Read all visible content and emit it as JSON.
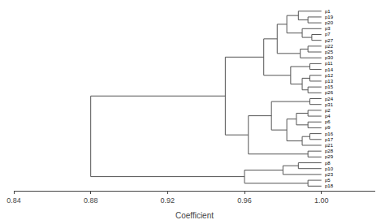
{
  "chart_data": {
    "type": "dendrogram",
    "xlabel": "Coefficient",
    "labels": [
      "p1",
      "p19",
      "p20",
      "p3",
      "p7",
      "p27",
      "p22",
      "p25",
      "p30",
      "p11",
      "p14",
      "p12",
      "p13",
      "p15",
      "p26",
      "p24",
      "p31",
      "p2",
      "p4",
      "p6",
      "p9",
      "p16",
      "p17",
      "p21",
      "p28",
      "p29",
      "p8",
      "p10",
      "p23",
      "p5",
      "p18"
    ],
    "leaf_height": 1.0,
    "merges": [
      {
        "left": 1,
        "right": 2,
        "height": 0.993,
        "id": 31
      },
      {
        "left": 0,
        "right": 31,
        "height": 0.988,
        "id": 32
      },
      {
        "left": 4,
        "right": 5,
        "height": 0.995,
        "id": 33
      },
      {
        "left": 3,
        "right": 33,
        "height": 0.99,
        "id": 34
      },
      {
        "left": 32,
        "right": 34,
        "height": 0.982,
        "id": 35
      },
      {
        "left": 6,
        "right": 7,
        "height": 0.993,
        "id": 36
      },
      {
        "left": 8,
        "right": 36,
        "height": 0.989,
        "id": 37
      },
      {
        "left": 35,
        "right": 37,
        "height": 0.977,
        "id": 38
      },
      {
        "left": 9,
        "right": 10,
        "height": 0.994,
        "id": 39
      },
      {
        "left": 11,
        "right": 12,
        "height": 0.994,
        "id": 40
      },
      {
        "left": 13,
        "right": 14,
        "height": 0.993,
        "id": 41
      },
      {
        "left": 40,
        "right": 41,
        "height": 0.99,
        "id": 42
      },
      {
        "left": 39,
        "right": 42,
        "height": 0.984,
        "id": 43
      },
      {
        "left": 38,
        "right": 43,
        "height": 0.97,
        "id": 44
      },
      {
        "left": 15,
        "right": 16,
        "height": 0.994,
        "id": 45
      },
      {
        "left": 17,
        "right": 18,
        "height": 0.993,
        "id": 46
      },
      {
        "left": 19,
        "right": 20,
        "height": 0.993,
        "id": 47
      },
      {
        "left": 46,
        "right": 47,
        "height": 0.987,
        "id": 48
      },
      {
        "left": 21,
        "right": 22,
        "height": 0.994,
        "id": 49
      },
      {
        "left": 23,
        "right": 49,
        "height": 0.99,
        "id": 50
      },
      {
        "left": 48,
        "right": 50,
        "height": 0.982,
        "id": 51
      },
      {
        "left": 45,
        "right": 51,
        "height": 0.974,
        "id": 52
      },
      {
        "left": 24,
        "right": 25,
        "height": 0.993,
        "id": 53
      },
      {
        "left": 26,
        "right": 27,
        "height": 0.988,
        "id": 54
      },
      {
        "left": 28,
        "right": 54,
        "height": 0.98,
        "id": 55
      },
      {
        "left": 29,
        "right": 30,
        "height": 0.993,
        "id": 56
      },
      {
        "left": 55,
        "right": 56,
        "height": 0.96,
        "id": 57
      },
      {
        "left": 52,
        "right": 53,
        "height": 0.962,
        "id": 58
      },
      {
        "left": 44,
        "right": 58,
        "height": 0.95,
        "id": 59
      },
      {
        "left": 57,
        "right": 59,
        "height": 0.88,
        "id": 60
      }
    ],
    "color": "#555555",
    "xlim": [
      0.84,
      1.028
    ],
    "xticks": [
      0.84,
      0.88,
      0.92,
      0.96,
      {
        "value": 1.0,
        "label": "1.00"
      }
    ],
    "grid": false,
    "tick_labels": "x"
  }
}
